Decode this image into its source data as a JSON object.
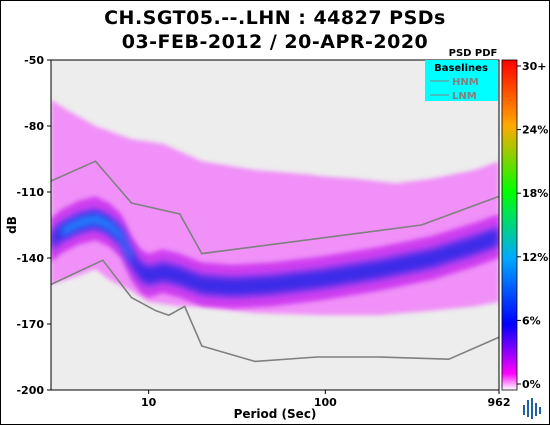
{
  "title_line1": "CH.SGT05.--.LHN : 44827 PSDs",
  "title_line2": "03-FEB-2012 / 20-APR-2020",
  "chart_data": {
    "type": "heatmap",
    "xlabel": "Period (Sec)",
    "ylabel": "dB",
    "x_scale": "log",
    "xlim": [
      2.8,
      962
    ],
    "ylim": [
      -200,
      -50
    ],
    "x_ticks": [
      "10",
      "100",
      "962"
    ],
    "x_tick_values": [
      10,
      100,
      962
    ],
    "y_ticks": [
      "-50",
      "-80",
      "-110",
      "-140",
      "-170",
      "-200"
    ],
    "y_tick_values": [
      -50,
      -80,
      -110,
      -140,
      -170,
      -200
    ],
    "legend": {
      "title": "Baselines",
      "header": "PSD PDF",
      "position": "top-right",
      "entries": [
        {
          "name": "HNM",
          "color": "#808080"
        },
        {
          "name": "LNM",
          "color": "#808080"
        }
      ],
      "background": "#00ffff"
    },
    "colorbar": {
      "label_values": [
        "30+",
        "24%",
        "18%",
        "12%",
        "6%",
        "0%"
      ],
      "range_percent": [
        0,
        30
      ]
    },
    "series": [
      {
        "name": "HNM",
        "x": [
          2.8,
          5,
          8,
          15,
          20,
          350,
          962
        ],
        "y": [
          -105,
          -96,
          -115,
          -120,
          -138,
          -125,
          -112
        ]
      },
      {
        "name": "LNM",
        "x": [
          2.8,
          5.5,
          8,
          11,
          13,
          16,
          20,
          40,
          90,
          200,
          500,
          962
        ],
        "y": [
          -152,
          -141,
          -158,
          -164,
          -166,
          -162,
          -180,
          -187,
          -185,
          -185,
          -186,
          -176
        ]
      }
    ],
    "density": {
      "mode_curve": {
        "x": [
          2.8,
          3.2,
          4,
          5,
          6,
          7,
          8,
          9,
          10,
          11,
          12,
          15,
          20,
          30,
          50,
          80,
          100,
          200,
          400,
          700,
          962
        ],
        "y": [
          -132,
          -128,
          -124,
          -122,
          -125,
          -130,
          -140,
          -146,
          -148,
          -147,
          -146,
          -148,
          -152,
          -153,
          -152,
          -150,
          -149,
          -145,
          -140,
          -134,
          -130
        ]
      },
      "upper_edge": {
        "x": [
          2.8,
          3.5,
          5,
          8,
          12,
          20,
          40,
          80,
          100,
          150,
          250,
          400,
          700,
          962
        ],
        "y": [
          -68,
          -73,
          -80,
          -86,
          -88,
          -96,
          -100,
          -102,
          -103,
          -104,
          -106,
          -104,
          -100,
          -96
        ]
      },
      "lower_edge": {
        "x": [
          2.8,
          4,
          5,
          6,
          8,
          10,
          15,
          20,
          40,
          100,
          200,
          400,
          700,
          962
        ],
        "y": [
          -152,
          -148,
          -145,
          -150,
          -155,
          -160,
          -162,
          -162,
          -165,
          -166,
          -166,
          -164,
          -162,
          -160
        ]
      }
    }
  }
}
